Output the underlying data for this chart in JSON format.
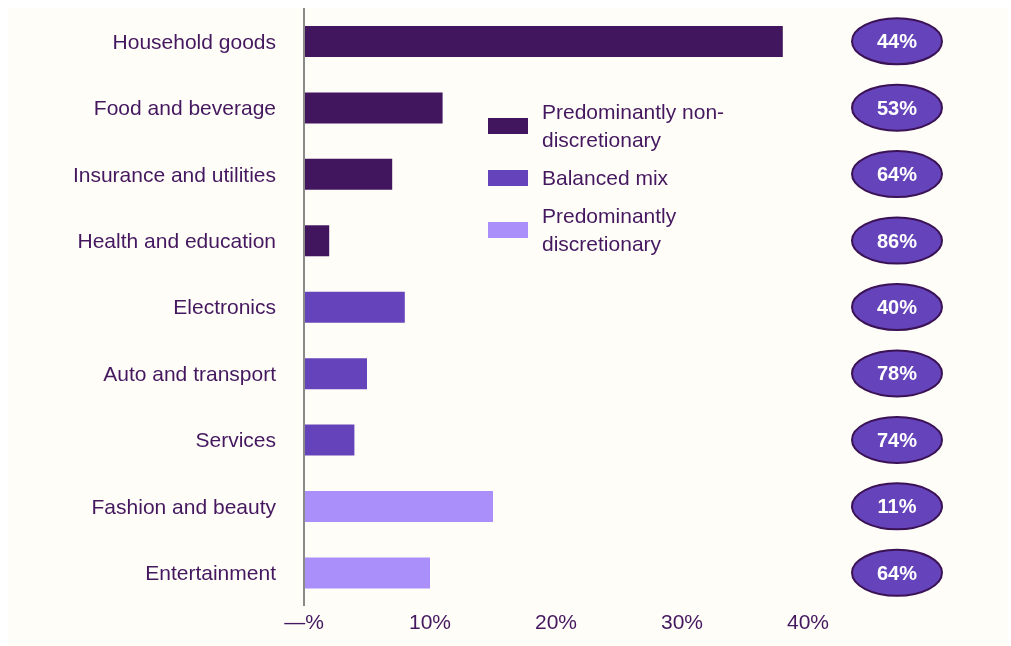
{
  "chart_data": {
    "type": "bar",
    "orientation": "horizontal",
    "stacked": true,
    "categories": [
      "Household goods",
      "Food and beverage",
      "Insurance and utilities",
      "Health and education",
      "Electronics",
      "Auto and transport",
      "Services",
      "Fashion and beauty",
      "Entertainment"
    ],
    "series": [
      {
        "name": "Predominantly non-discretionary",
        "color": "#42165e",
        "values": [
          38,
          11,
          7,
          2,
          null,
          null,
          null,
          null,
          null
        ]
      },
      {
        "name": "Balanced mix",
        "color": "#6544bb",
        "values": [
          null,
          null,
          null,
          null,
          8,
          5,
          4,
          null,
          null
        ]
      },
      {
        "name": "Predominantly discretionary",
        "color": "#aa8ffa",
        "values": [
          null,
          null,
          null,
          null,
          null,
          null,
          null,
          15,
          10
        ]
      }
    ],
    "xlim": [
      0,
      40
    ],
    "xticks": [
      {
        "value": 0,
        "label": "—%"
      },
      {
        "value": 10,
        "label": "10%"
      },
      {
        "value": 20,
        "label": "20%"
      },
      {
        "value": 30,
        "label": "30%"
      },
      {
        "value": 40,
        "label": "40%"
      }
    ],
    "grid": false,
    "legend": "top right",
    "annotations": [
      "44%",
      "53%",
      "64%",
      "86%",
      "40%",
      "78%",
      "74%",
      "11%",
      "64%"
    ]
  }
}
